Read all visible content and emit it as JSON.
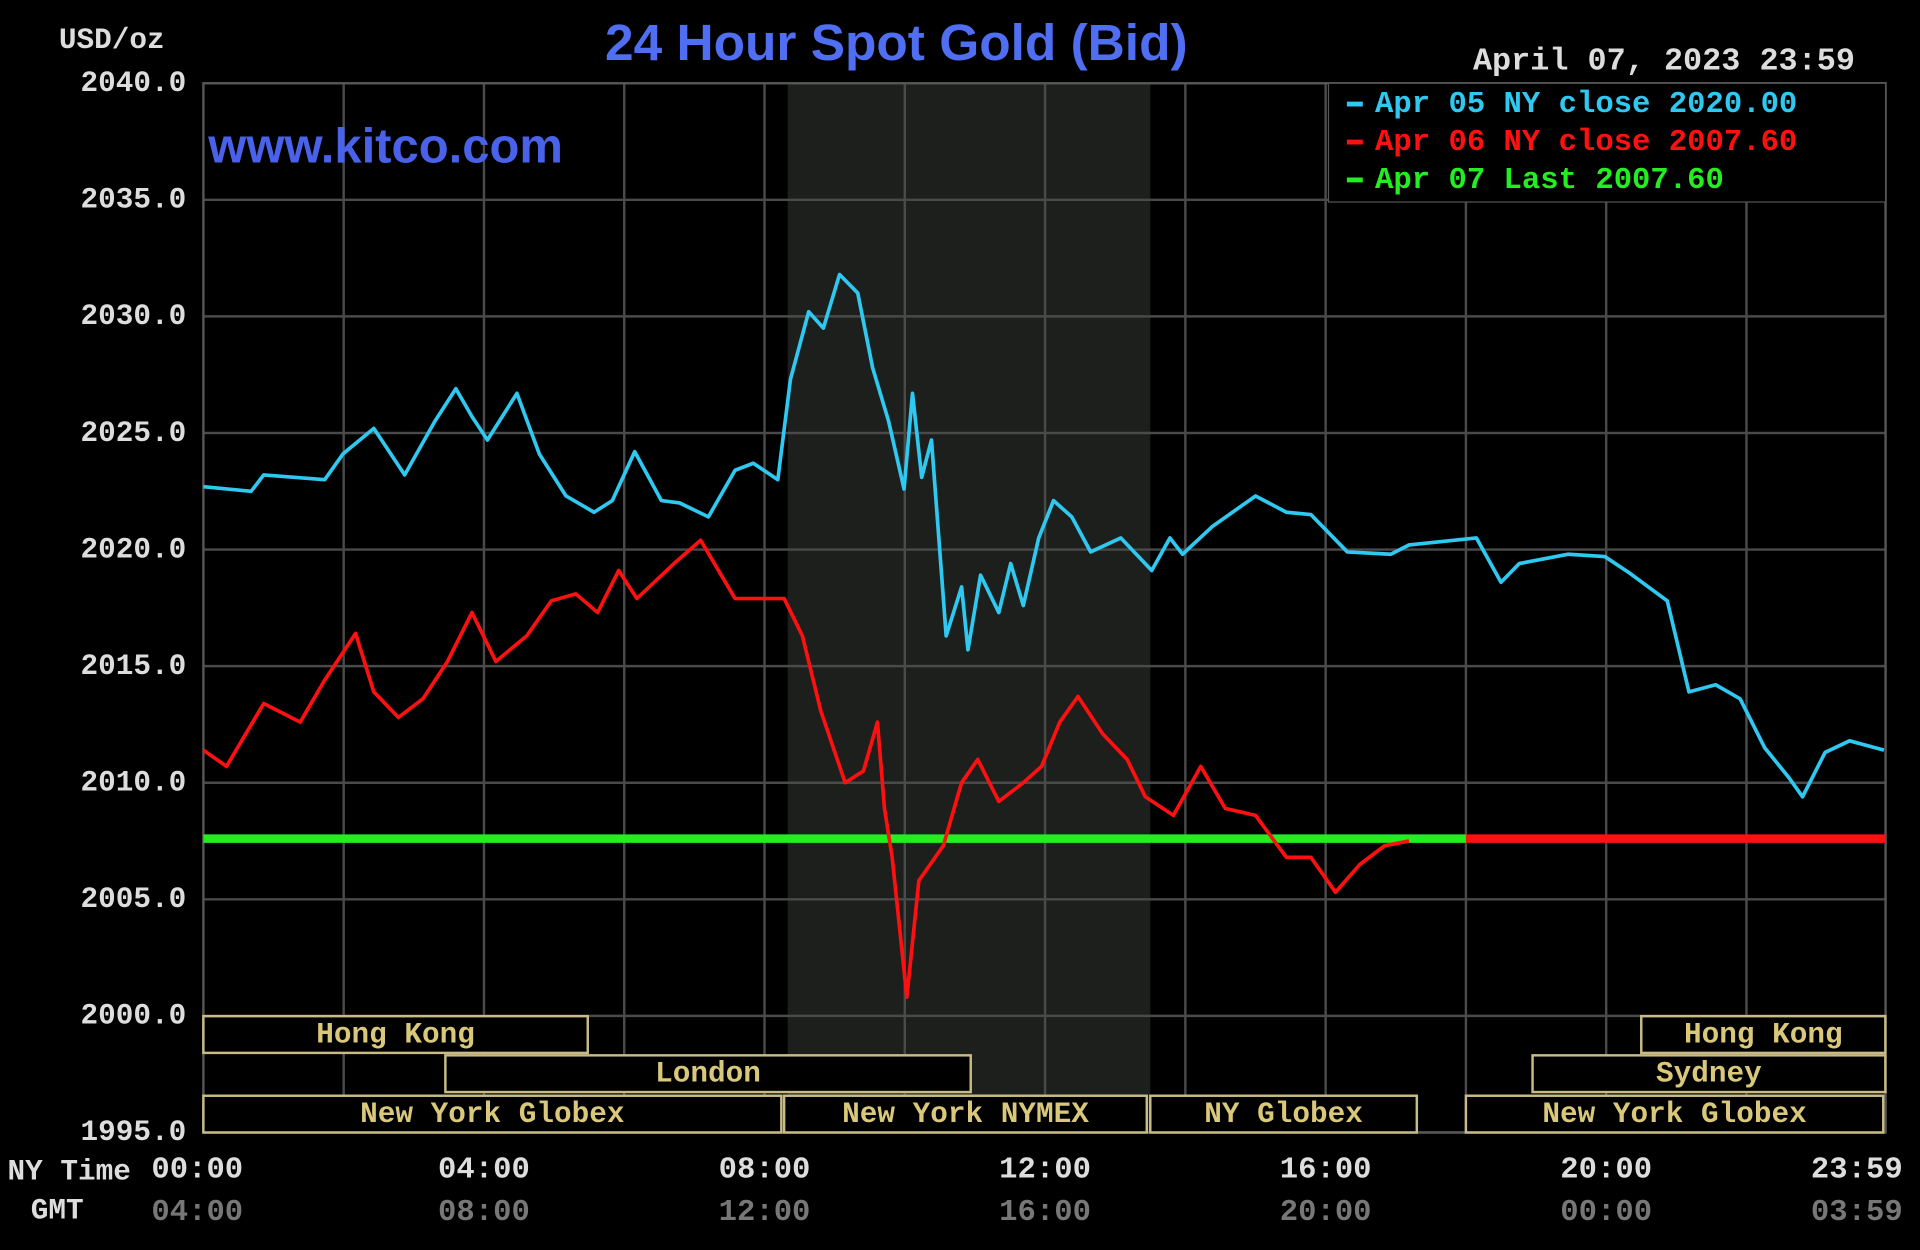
{
  "chart_data": {
    "type": "line",
    "title": "24 Hour Spot Gold (Bid)",
    "y_label": "USD/oz",
    "date_label": "April 07, 2023 23:59",
    "watermark": "www.kitco.com",
    "x_label": "NY Time",
    "x2_label": "GMT",
    "xlim": [
      0,
      23.983
    ],
    "ylim": [
      1995,
      2040
    ],
    "yticks": [
      {
        "value": 1995,
        "label": "1995.0"
      },
      {
        "value": 2000,
        "label": "2000.0"
      },
      {
        "value": 2005,
        "label": "2005.0"
      },
      {
        "value": 2010,
        "label": "2010.0"
      },
      {
        "value": 2015,
        "label": "2015.0"
      },
      {
        "value": 2020,
        "label": "2020.0"
      },
      {
        "value": 2025,
        "label": "2025.0"
      },
      {
        "value": 2030,
        "label": "2030.0"
      },
      {
        "value": 2035,
        "label": "2035.0"
      },
      {
        "value": 2040,
        "label": "2040.0"
      }
    ],
    "xticks": [
      {
        "value": 0,
        "label": "00:00"
      },
      {
        "value": 4,
        "label": "04:00"
      },
      {
        "value": 8,
        "label": "08:00"
      },
      {
        "value": 12,
        "label": "12:00"
      },
      {
        "value": 16,
        "label": "16:00"
      },
      {
        "value": 20,
        "label": "20:00"
      },
      {
        "value": 23.983,
        "label": "23:59"
      }
    ],
    "x2tick_labels": [
      "04:00",
      "08:00",
      "12:00",
      "16:00",
      "20:00",
      "00:00",
      "03:59"
    ],
    "xgrid": [
      2,
      4,
      6,
      8,
      10,
      12,
      14,
      16,
      18,
      20,
      22
    ],
    "grid": true,
    "legend": "top-right",
    "shaded_band": [
      8.33,
      13.5
    ],
    "series": [
      {
        "name": "Apr 05 NY close 2020.00",
        "color": "#2ec8f0",
        "x": [
          0,
          0.68,
          0.86,
          1.73,
          1.99,
          2.43,
          2.87,
          3.3,
          3.6,
          3.83,
          4.05,
          4.47,
          4.79,
          5.17,
          5.57,
          5.83,
          6.15,
          6.53,
          6.79,
          7.2,
          7.58,
          7.84,
          8.19,
          8.37,
          8.63,
          8.84,
          9.07,
          9.33,
          9.54,
          9.77,
          9.99,
          10.11,
          10.24,
          10.38,
          10.59,
          10.81,
          10.9,
          11.08,
          11.34,
          11.51,
          11.69,
          11.91,
          12.12,
          12.38,
          12.65,
          13.08,
          13.52,
          13.78,
          13.96,
          14.39,
          15.0,
          15.44,
          15.79,
          16.31,
          16.93,
          17.19,
          18.15,
          18.5,
          18.76,
          19.46,
          19.98,
          20.33,
          20.87,
          21.18,
          21.56,
          21.91,
          22.26,
          22.61,
          22.8,
          23.12,
          23.47,
          23.96
        ],
        "values": [
          2022.7,
          2022.5,
          2023.2,
          2023.0,
          2024.1,
          2025.2,
          2023.2,
          2025.5,
          2026.9,
          2025.7,
          2024.7,
          2026.7,
          2024.1,
          2022.3,
          2021.6,
          2022.1,
          2024.2,
          2022.1,
          2022.0,
          2021.4,
          2023.4,
          2023.7,
          2023.0,
          2027.3,
          2030.2,
          2029.5,
          2031.8,
          2031.0,
          2027.8,
          2025.5,
          2022.6,
          2026.7,
          2023.1,
          2024.7,
          2016.3,
          2018.4,
          2015.7,
          2018.9,
          2017.3,
          2019.4,
          2017.6,
          2020.5,
          2022.1,
          2021.4,
          2019.9,
          2020.5,
          2019.1,
          2020.5,
          2019.8,
          2021.0,
          2022.3,
          2021.6,
          2021.5,
          2019.9,
          2019.8,
          2020.2,
          2020.5,
          2018.6,
          2019.4,
          2019.8,
          2019.7,
          2019.0,
          2017.8,
          2013.9,
          2014.2,
          2013.6,
          2011.5,
          2010.2,
          2009.4,
          2011.3,
          2011.8,
          2011.4
        ]
      },
      {
        "name": "Apr 06 NY close 2007.60",
        "color": "#ff1010",
        "x": [
          0,
          0.33,
          0.86,
          1.38,
          1.73,
          2.17,
          2.43,
          2.78,
          3.13,
          3.48,
          3.83,
          4.17,
          4.61,
          4.96,
          5.31,
          5.62,
          5.92,
          6.18,
          6.71,
          7.09,
          7.58,
          8.28,
          8.54,
          8.8,
          9.15,
          9.41,
          9.61,
          9.71,
          9.82,
          10.03,
          10.2,
          10.55,
          10.81,
          11.04,
          11.34,
          11.69,
          11.95,
          12.21,
          12.47,
          12.82,
          13.17,
          13.43,
          13.83,
          14.22,
          14.57,
          15.0,
          15.44,
          15.79,
          16.14,
          16.49,
          16.84,
          17.19
        ],
        "values": [
          2011.4,
          2010.7,
          2013.4,
          2012.6,
          2014.4,
          2016.4,
          2013.9,
          2012.8,
          2013.6,
          2015.2,
          2017.3,
          2015.2,
          2016.3,
          2017.8,
          2018.1,
          2017.3,
          2019.1,
          2017.9,
          2019.4,
          2020.4,
          2017.9,
          2017.9,
          2016.3,
          2013.1,
          2010.0,
          2010.5,
          2012.6,
          2008.9,
          2006.8,
          2000.8,
          2005.8,
          2007.3,
          2010.0,
          2011.0,
          2009.2,
          2010.0,
          2010.7,
          2012.6,
          2013.7,
          2012.1,
          2011.0,
          2009.4,
          2008.6,
          2010.7,
          2008.9,
          2008.6,
          2006.8,
          2006.8,
          2005.3,
          2006.5,
          2007.3,
          2007.5
        ]
      },
      {
        "name": "Apr 07 Last 2007.60",
        "color": "#22ee22",
        "x": [
          0,
          18
        ],
        "values": [
          2007.6,
          2007.6
        ]
      }
    ],
    "prior_close_line": {
      "color": "#ff1010",
      "x": [
        18,
        23.983
      ],
      "values": [
        2007.6,
        2007.6
      ]
    },
    "sessions": [
      {
        "label": "Hong Kong",
        "row": 0,
        "start": 0,
        "end": 5.48
      },
      {
        "label": "Hong Kong",
        "row": 0,
        "start": 20.5,
        "end": 23.98
      },
      {
        "label": "London",
        "row": 1,
        "start": 3.45,
        "end": 10.94
      },
      {
        "label": "Sydney",
        "row": 1,
        "start": 18.95,
        "end": 23.98
      },
      {
        "label": "New York Globex",
        "row": 2,
        "start": 0,
        "end": 8.24
      },
      {
        "label": "New York NYMEX",
        "row": 2,
        "start": 8.28,
        "end": 13.45
      },
      {
        "label": "NY Globex",
        "row": 2,
        "start": 13.5,
        "end": 17.3
      },
      {
        "label": "New York Globex",
        "row": 2,
        "start": 18,
        "end": 23.95
      }
    ]
  }
}
